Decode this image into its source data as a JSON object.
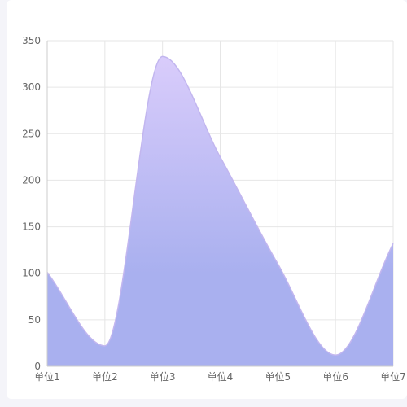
{
  "chart_data": {
    "type": "area",
    "title": "",
    "xlabel": "",
    "ylabel": "",
    "categories": [
      "单位1",
      "单位2",
      "单位3",
      "单位4",
      "单位5",
      "单位6",
      "单位7"
    ],
    "y_ticks": [
      "0",
      "50",
      "100",
      "150",
      "200",
      "250",
      "300",
      "350"
    ],
    "ylim": [
      0,
      350
    ],
    "grid": true,
    "smooth": true,
    "series": [
      {
        "values": [
          101,
          22,
          333,
          225,
          110,
          12,
          132
        ]
      }
    ],
    "colors": {
      "area_top": "#d9ccfb",
      "area_bottom": "#a9b0ef",
      "line": "#c2b6ef",
      "grid": "#e6e6e6",
      "axis": "#cccccc"
    }
  }
}
